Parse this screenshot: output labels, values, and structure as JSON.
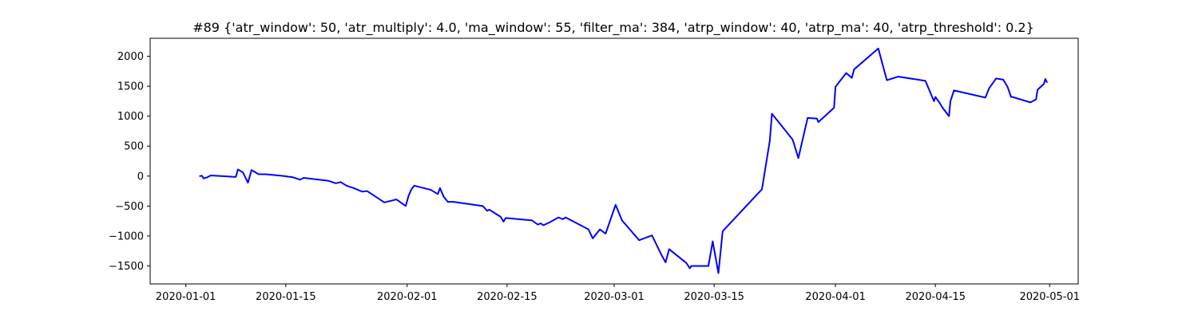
{
  "chart_data": {
    "type": "line",
    "title": "#89 {'atr_window': 50, 'atr_multiply': 4.0, 'ma_window': 55, 'filter_ma': 384, 'atrp_window': 40, 'atrp_ma': 40, 'atrp_threshold': 0.2}",
    "xlabel": "",
    "ylabel": "",
    "xlim": [
      "2019-12-27",
      "2020-05-05"
    ],
    "ylim": [
      -1800,
      2300
    ],
    "grid": false,
    "x_ticks": [
      "2020-01-01",
      "2020-01-15",
      "2020-02-01",
      "2020-02-15",
      "2020-03-01",
      "2020-03-15",
      "2020-04-01",
      "2020-04-15",
      "2020-05-01"
    ],
    "y_ticks": [
      -1500,
      -1000,
      -500,
      0,
      500,
      1000,
      1500,
      2000
    ],
    "y_tick_labels": [
      "−1500",
      "−1000",
      "−500",
      "0",
      "500",
      "1000",
      "1500",
      "2000"
    ],
    "series": [
      {
        "name": "",
        "color": "#0000ff",
        "points": [
          [
            "2020-01-03",
            0
          ],
          [
            "2020-01-03.25",
            5
          ],
          [
            "2020-01-03.5",
            -40
          ],
          [
            "2020-01-04",
            -20
          ],
          [
            "2020-01-04.5",
            10
          ],
          [
            "2020-01-08",
            -15
          ],
          [
            "2020-01-08.3",
            110
          ],
          [
            "2020-01-09",
            60
          ],
          [
            "2020-01-09.7",
            -110
          ],
          [
            "2020-01-10.2",
            100
          ],
          [
            "2020-01-11.2",
            30
          ],
          [
            "2020-01-12.2",
            30
          ],
          [
            "2020-01-14.8",
            0
          ],
          [
            "2020-01-15.3",
            -10
          ],
          [
            "2020-01-16",
            -20
          ],
          [
            "2020-01-16.5",
            -40
          ],
          [
            "2020-01-17",
            -60
          ],
          [
            "2020-01-17.5",
            -30
          ],
          [
            "2020-01-21",
            -80
          ],
          [
            "2020-01-22",
            -120
          ],
          [
            "2020-01-22.7",
            -100
          ],
          [
            "2020-01-23.5",
            -160
          ],
          [
            "2020-01-24.5",
            -200
          ],
          [
            "2020-01-25.7",
            -260
          ],
          [
            "2020-01-26.4",
            -250
          ],
          [
            "2020-01-28.8",
            -440
          ],
          [
            "2020-01-30.5",
            -390
          ],
          [
            "2020-01-31.8",
            -500
          ],
          [
            "2020-02-01.2",
            -330
          ],
          [
            "2020-02-01.6",
            -220
          ],
          [
            "2020-02-02",
            -160
          ],
          [
            "2020-02-04.3",
            -230
          ],
          [
            "2020-02-05.3",
            -300
          ],
          [
            "2020-02-05.6",
            -200
          ],
          [
            "2020-02-06.1",
            -340
          ],
          [
            "2020-02-06.7",
            -430
          ],
          [
            "2020-02-07.5",
            -430
          ],
          [
            "2020-02-11.6",
            -500
          ],
          [
            "2020-02-12.2",
            -580
          ],
          [
            "2020-02-12.5",
            -560
          ],
          [
            "2020-02-14.1",
            -680
          ],
          [
            "2020-02-14.5",
            -760
          ],
          [
            "2020-02-14.8",
            -700
          ],
          [
            "2020-02-18.5",
            -740
          ],
          [
            "2020-02-19.3",
            -810
          ],
          [
            "2020-02-19.7",
            -790
          ],
          [
            "2020-02-20.1",
            -820
          ],
          [
            "2020-02-21",
            -770
          ],
          [
            "2020-02-22.2",
            -690
          ],
          [
            "2020-02-22.8",
            -720
          ],
          [
            "2020-02-23.2",
            -690
          ],
          [
            "2020-02-26.4",
            -890
          ],
          [
            "2020-02-27",
            -1040
          ],
          [
            "2020-02-28",
            -890
          ],
          [
            "2020-02-28.8",
            -960
          ],
          [
            "2020-03-01.2",
            -480
          ],
          [
            "2020-03-02.1",
            -740
          ],
          [
            "2020-03-04.5",
            -1070
          ],
          [
            "2020-03-06.3",
            -990
          ],
          [
            "2020-03-07.6",
            -1310
          ],
          [
            "2020-03-08.2",
            -1440
          ],
          [
            "2020-03-08.7",
            -1220
          ],
          [
            "2020-03-11.1",
            -1450
          ],
          [
            "2020-03-11.6",
            -1540
          ],
          [
            "2020-03-11.8",
            -1500
          ],
          [
            "2020-03-14.2",
            -1500
          ],
          [
            "2020-03-14.8",
            -1090
          ],
          [
            "2020-03-15.6",
            -1620
          ],
          [
            "2020-03-16.2",
            -920
          ],
          [
            "2020-03-21.7",
            -220
          ],
          [
            "2020-03-22.8",
            590
          ],
          [
            "2020-03-23.1",
            1040
          ],
          [
            "2020-03-26",
            610
          ],
          [
            "2020-03-26.8",
            300
          ],
          [
            "2020-03-28.1",
            970
          ],
          [
            "2020-03-29.4",
            960
          ],
          [
            "2020-03-29.6",
            900
          ],
          [
            "2020-03-31.8",
            1140
          ],
          [
            "2020-04-01",
            1490
          ],
          [
            "2020-04-02.5",
            1720
          ],
          [
            "2020-04-03.3",
            1640
          ],
          [
            "2020-04-03.6",
            1780
          ],
          [
            "2020-04-07",
            2130
          ],
          [
            "2020-04-07.6",
            1860
          ],
          [
            "2020-04-08.2",
            1600
          ],
          [
            "2020-04-09.8",
            1660
          ],
          [
            "2020-04-13.6",
            1590
          ],
          [
            "2020-04-14.3",
            1390
          ],
          [
            "2020-04-14.8",
            1250
          ],
          [
            "2020-04-15",
            1320
          ],
          [
            "2020-04-15.6",
            1220
          ],
          [
            "2020-04-16",
            1140
          ],
          [
            "2020-04-16.9",
            1000
          ],
          [
            "2020-04-17.1",
            1250
          ],
          [
            "2020-04-17.6",
            1430
          ],
          [
            "2020-04-22",
            1310
          ],
          [
            "2020-04-22.5",
            1460
          ],
          [
            "2020-04-23.5",
            1630
          ],
          [
            "2020-04-24.5",
            1610
          ],
          [
            "2020-04-25.1",
            1490
          ],
          [
            "2020-04-25.6",
            1320
          ],
          [
            "2020-04-25.8",
            1320
          ],
          [
            "2020-04-28.3",
            1230
          ],
          [
            "2020-04-29.1",
            1280
          ],
          [
            "2020-04-29.3",
            1440
          ],
          [
            "2020-04-30.2",
            1540
          ],
          [
            "2020-04-30.4",
            1620
          ],
          [
            "2020-04-30.6",
            1570
          ]
        ]
      }
    ]
  }
}
